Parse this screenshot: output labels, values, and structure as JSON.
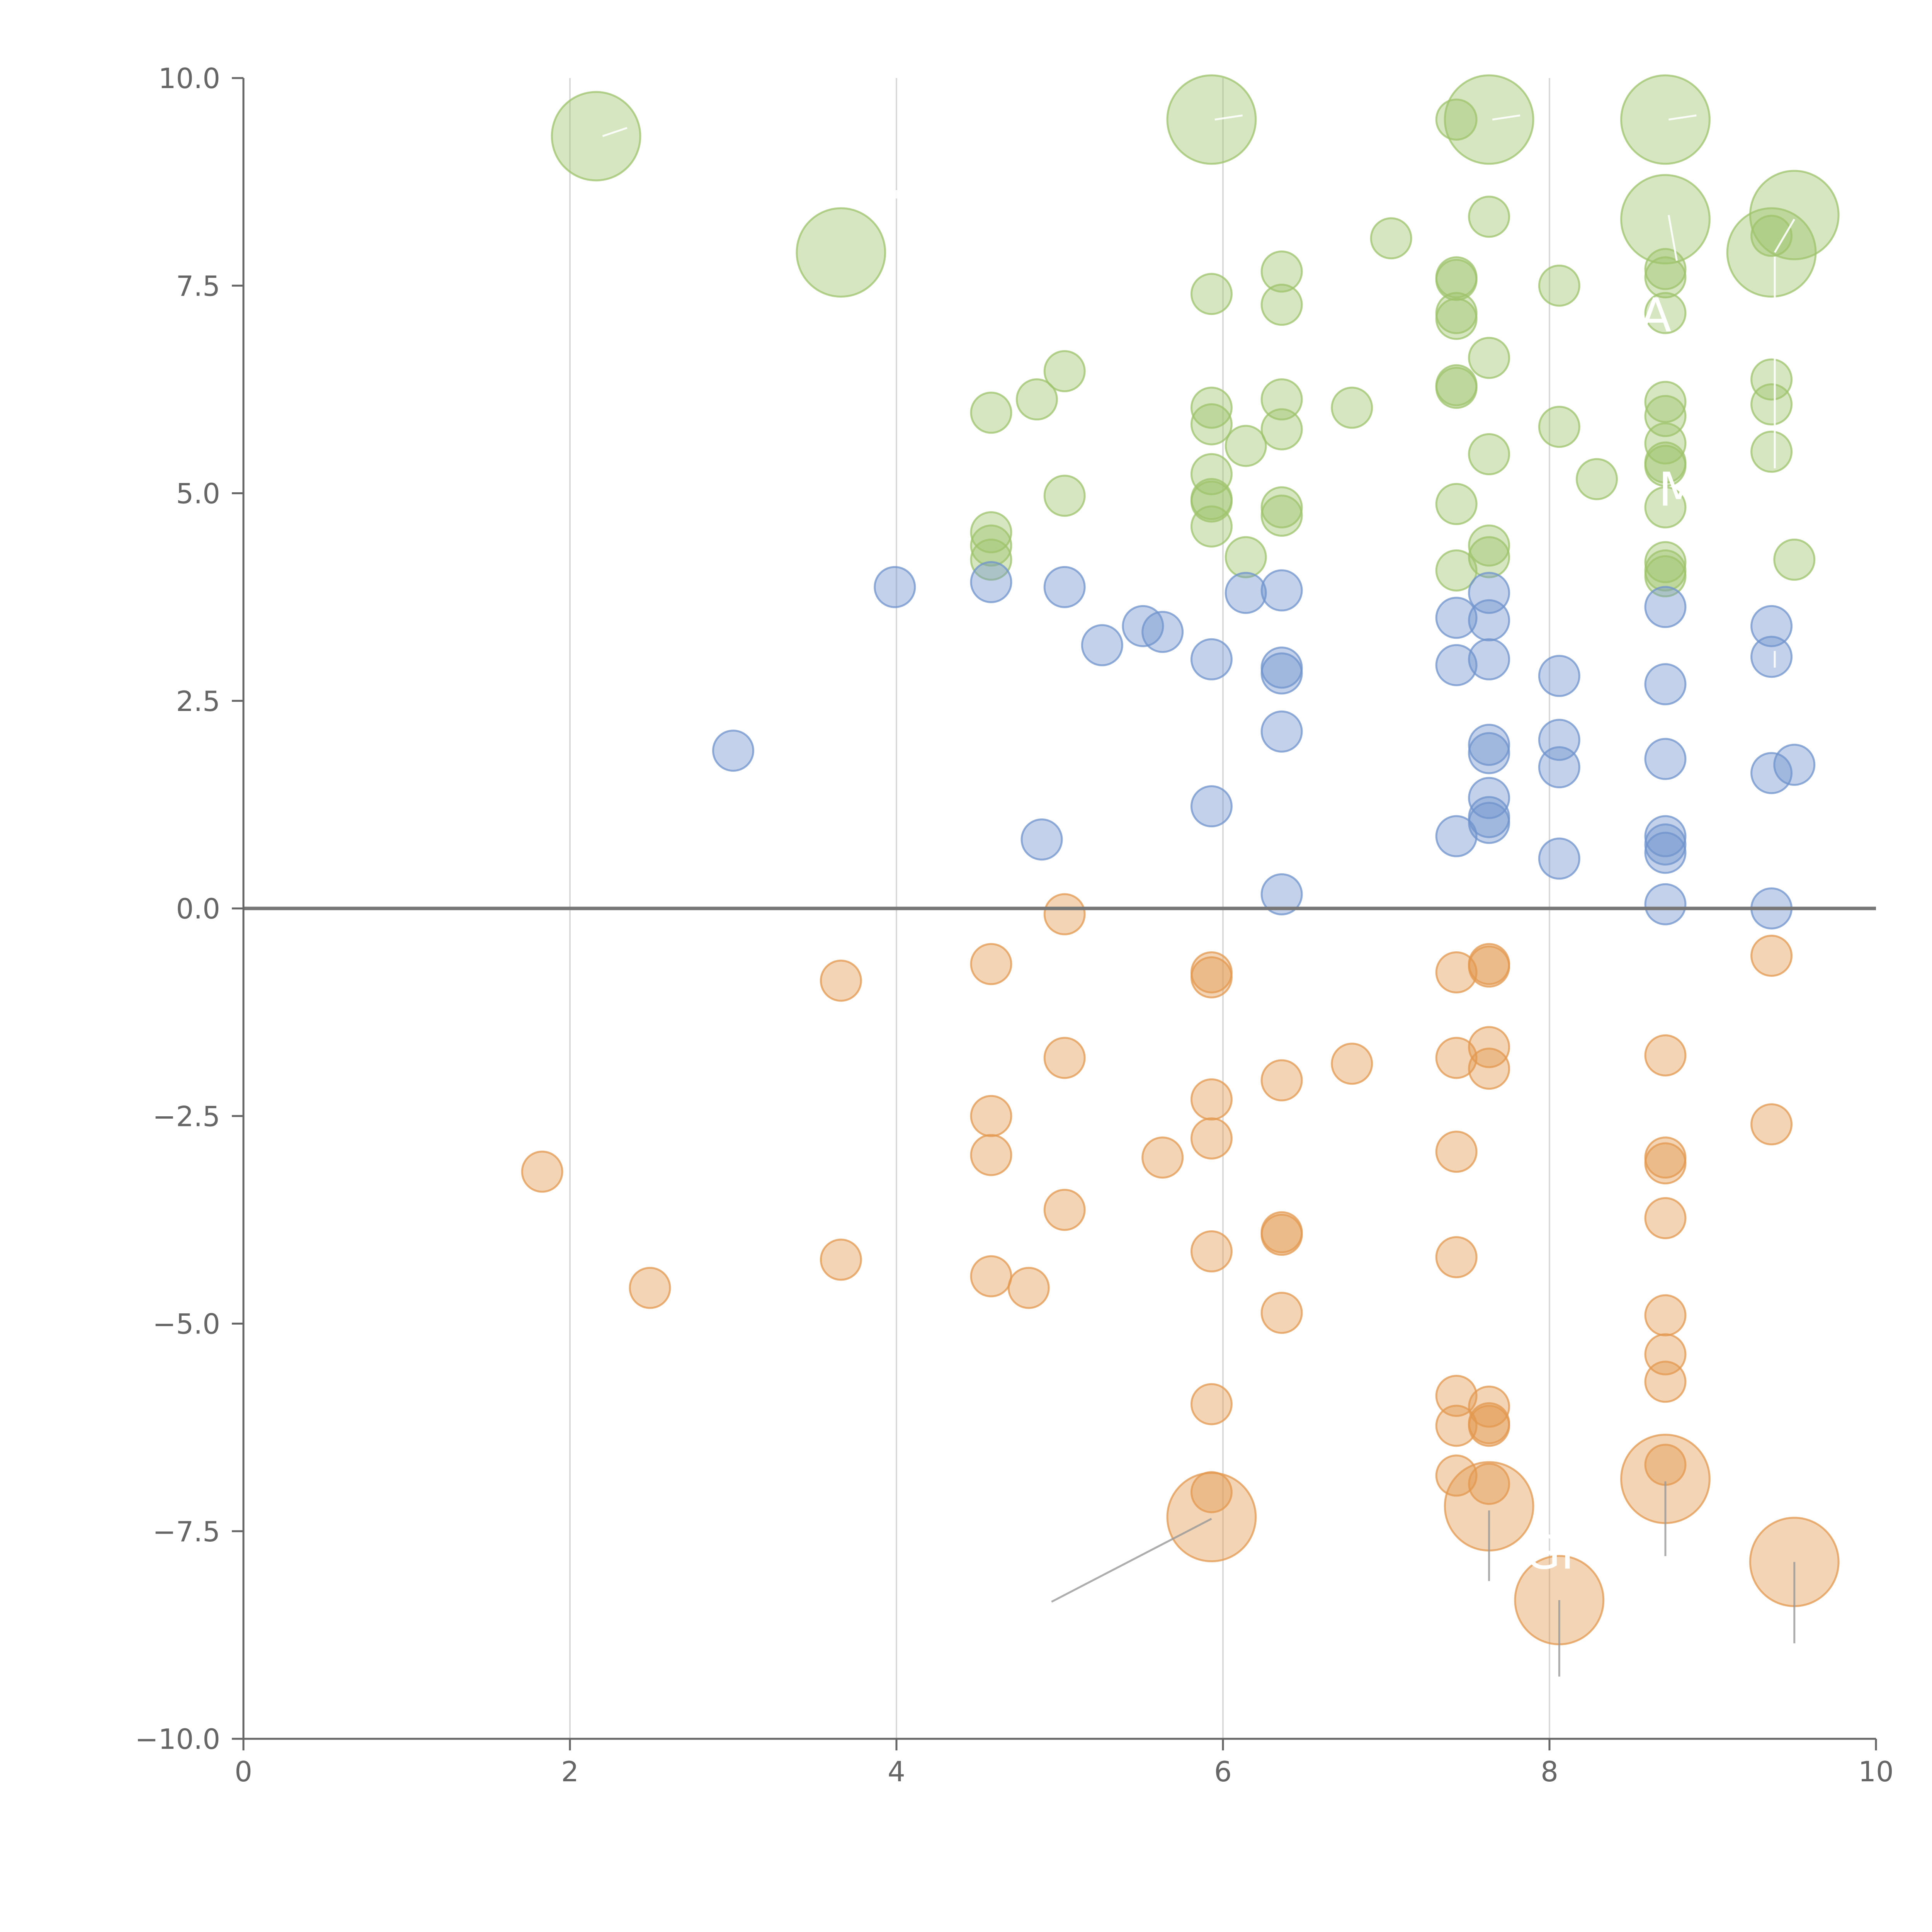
{
  "chart_data": {
    "type": "scatter",
    "title": "",
    "xlabel": "",
    "ylabel": "",
    "xlim": [
      0,
      10
    ],
    "ylim": [
      -10,
      10
    ],
    "xticks": [
      0,
      2,
      4,
      6,
      8,
      10
    ],
    "yticks": [
      -10,
      -7.5,
      -5,
      -2.5,
      0,
      2.5,
      5,
      7.5,
      10
    ],
    "xtick_labels": [
      "0",
      "2",
      "4",
      "6",
      "8",
      "10"
    ],
    "ytick_labels": [
      "−10.0",
      "−7.5",
      "−5.0",
      "−2.5",
      "0.0",
      "2.5",
      "5.0",
      "7.5",
      "10.0"
    ],
    "gridlines_x": [
      2,
      4,
      6,
      8
    ],
    "reference_line_y": 0,
    "colors": {
      "green": "#9dc36b",
      "blue": "#6f93cc",
      "orange": "#e3984f",
      "axis": "#666666"
    },
    "series": [
      {
        "name": "green",
        "color": "#9dc36b",
        "points": [
          {
            "x": 2.16,
            "y": 9.3,
            "s": 2.2
          },
          {
            "x": 3.66,
            "y": 7.9,
            "s": 2.2
          },
          {
            "x": 5.93,
            "y": 9.5,
            "s": 2.2
          },
          {
            "x": 7.63,
            "y": 9.5,
            "s": 2.2
          },
          {
            "x": 8.71,
            "y": 9.5,
            "s": 2.2
          },
          {
            "x": 8.71,
            "y": 8.3,
            "s": 2.2
          },
          {
            "x": 9.36,
            "y": 7.9,
            "s": 2.2
          },
          {
            "x": 9.5,
            "y": 8.35,
            "s": 2.2
          },
          {
            "x": 7.43,
            "y": 9.5,
            "s": 1
          },
          {
            "x": 7.63,
            "y": 8.33,
            "s": 1
          },
          {
            "x": 7.03,
            "y": 8.07,
            "s": 1
          },
          {
            "x": 6.36,
            "y": 7.67,
            "s": 1
          },
          {
            "x": 7.43,
            "y": 7.6,
            "s": 1
          },
          {
            "x": 7.43,
            "y": 7.57,
            "s": 1
          },
          {
            "x": 8.06,
            "y": 7.5,
            "s": 1
          },
          {
            "x": 5.93,
            "y": 7.4,
            "s": 1
          },
          {
            "x": 6.36,
            "y": 7.27,
            "s": 1
          },
          {
            "x": 7.43,
            "y": 7.17,
            "s": 1
          },
          {
            "x": 7.43,
            "y": 7.1,
            "s": 1
          },
          {
            "x": 8.71,
            "y": 7.7,
            "s": 1
          },
          {
            "x": 8.71,
            "y": 7.6,
            "s": 1
          },
          {
            "x": 8.71,
            "y": 7.17,
            "s": 1
          },
          {
            "x": 9.36,
            "y": 8.1,
            "s": 1
          },
          {
            "x": 7.63,
            "y": 6.63,
            "s": 1
          },
          {
            "x": 7.43,
            "y": 6.3,
            "s": 1
          },
          {
            "x": 7.43,
            "y": 6.27,
            "s": 1
          },
          {
            "x": 5.03,
            "y": 6.47,
            "s": 1
          },
          {
            "x": 4.86,
            "y": 6.13,
            "s": 1
          },
          {
            "x": 4.58,
            "y": 5.97,
            "s": 1
          },
          {
            "x": 6.36,
            "y": 6.13,
            "s": 1
          },
          {
            "x": 6.79,
            "y": 6.03,
            "s": 1
          },
          {
            "x": 5.93,
            "y": 6.03,
            "s": 1
          },
          {
            "x": 5.93,
            "y": 5.83,
            "s": 1
          },
          {
            "x": 6.36,
            "y": 5.77,
            "s": 1
          },
          {
            "x": 6.14,
            "y": 5.57,
            "s": 1
          },
          {
            "x": 8.71,
            "y": 6.1,
            "s": 1
          },
          {
            "x": 8.71,
            "y": 5.93,
            "s": 1
          },
          {
            "x": 8.06,
            "y": 5.8,
            "s": 1
          },
          {
            "x": 8.71,
            "y": 5.6,
            "s": 1
          },
          {
            "x": 7.63,
            "y": 5.47,
            "s": 1
          },
          {
            "x": 8.71,
            "y": 5.37,
            "s": 1
          },
          {
            "x": 8.71,
            "y": 5.33,
            "s": 1
          },
          {
            "x": 9.36,
            "y": 6.37,
            "s": 1
          },
          {
            "x": 9.36,
            "y": 6.07,
            "s": 1
          },
          {
            "x": 9.36,
            "y": 5.5,
            "s": 1
          },
          {
            "x": 8.29,
            "y": 5.17,
            "s": 1
          },
          {
            "x": 5.93,
            "y": 5.23,
            "s": 1
          },
          {
            "x": 5.03,
            "y": 4.97,
            "s": 1
          },
          {
            "x": 5.93,
            "y": 4.93,
            "s": 1
          },
          {
            "x": 5.93,
            "y": 4.9,
            "s": 1
          },
          {
            "x": 7.43,
            "y": 4.87,
            "s": 1
          },
          {
            "x": 6.36,
            "y": 4.83,
            "s": 1
          },
          {
            "x": 6.36,
            "y": 4.73,
            "s": 1
          },
          {
            "x": 5.93,
            "y": 4.6,
            "s": 1
          },
          {
            "x": 4.58,
            "y": 4.53,
            "s": 1
          },
          {
            "x": 4.58,
            "y": 4.37,
            "s": 1
          },
          {
            "x": 4.58,
            "y": 4.2,
            "s": 1
          },
          {
            "x": 6.14,
            "y": 4.23,
            "s": 1
          },
          {
            "x": 7.63,
            "y": 4.37,
            "s": 1
          },
          {
            "x": 7.63,
            "y": 4.23,
            "s": 1
          },
          {
            "x": 7.43,
            "y": 4.07,
            "s": 1
          },
          {
            "x": 8.71,
            "y": 4.17,
            "s": 1
          },
          {
            "x": 8.71,
            "y": 4.07,
            "s": 1
          },
          {
            "x": 8.71,
            "y": 4.0,
            "s": 1
          },
          {
            "x": 8.71,
            "y": 4.83,
            "s": 1
          },
          {
            "x": 9.5,
            "y": 4.2,
            "s": 1
          }
        ]
      },
      {
        "name": "blue",
        "color": "#6f93cc",
        "points": [
          {
            "x": 3.99,
            "y": 3.87,
            "s": 1
          },
          {
            "x": 4.58,
            "y": 3.93,
            "s": 1
          },
          {
            "x": 5.03,
            "y": 3.87,
            "s": 1
          },
          {
            "x": 5.51,
            "y": 3.4,
            "s": 1
          },
          {
            "x": 5.63,
            "y": 3.33,
            "s": 1
          },
          {
            "x": 5.26,
            "y": 3.17,
            "s": 1
          },
          {
            "x": 5.93,
            "y": 3.0,
            "s": 1
          },
          {
            "x": 6.14,
            "y": 3.8,
            "s": 1
          },
          {
            "x": 6.36,
            "y": 3.83,
            "s": 1
          },
          {
            "x": 6.36,
            "y": 2.9,
            "s": 1
          },
          {
            "x": 6.36,
            "y": 2.83,
            "s": 1
          },
          {
            "x": 6.36,
            "y": 2.13,
            "s": 1
          },
          {
            "x": 7.43,
            "y": 3.5,
            "s": 1
          },
          {
            "x": 7.43,
            "y": 2.93,
            "s": 1
          },
          {
            "x": 7.63,
            "y": 3.8,
            "s": 1
          },
          {
            "x": 7.63,
            "y": 3.47,
            "s": 1
          },
          {
            "x": 7.63,
            "y": 3.0,
            "s": 1
          },
          {
            "x": 8.06,
            "y": 2.8,
            "s": 1
          },
          {
            "x": 8.71,
            "y": 3.63,
            "s": 1
          },
          {
            "x": 8.71,
            "y": 2.7,
            "s": 1
          },
          {
            "x": 9.36,
            "y": 3.4,
            "s": 1
          },
          {
            "x": 9.36,
            "y": 3.03,
            "s": 1
          },
          {
            "x": 3.0,
            "y": 1.9,
            "s": 1
          },
          {
            "x": 5.93,
            "y": 1.23,
            "s": 1
          },
          {
            "x": 4.89,
            "y": 0.83,
            "s": 1
          },
          {
            "x": 7.63,
            "y": 1.97,
            "s": 1
          },
          {
            "x": 7.63,
            "y": 1.87,
            "s": 1
          },
          {
            "x": 8.06,
            "y": 2.03,
            "s": 1
          },
          {
            "x": 8.06,
            "y": 1.7,
            "s": 1
          },
          {
            "x": 7.63,
            "y": 1.33,
            "s": 1
          },
          {
            "x": 7.63,
            "y": 1.1,
            "s": 1
          },
          {
            "x": 7.63,
            "y": 1.03,
            "s": 1
          },
          {
            "x": 7.43,
            "y": 0.87,
            "s": 1
          },
          {
            "x": 8.06,
            "y": 0.6,
            "s": 1
          },
          {
            "x": 8.71,
            "y": 1.8,
            "s": 1
          },
          {
            "x": 8.71,
            "y": 0.87,
            "s": 1
          },
          {
            "x": 8.71,
            "y": 0.77,
            "s": 1
          },
          {
            "x": 8.71,
            "y": 0.67,
            "s": 1
          },
          {
            "x": 8.71,
            "y": 0.05,
            "s": 1
          },
          {
            "x": 9.36,
            "y": 1.63,
            "s": 1
          },
          {
            "x": 9.5,
            "y": 1.73,
            "s": 1
          },
          {
            "x": 9.36,
            "y": 0.0,
            "s": 1
          },
          {
            "x": 6.36,
            "y": 0.17,
            "s": 1
          }
        ]
      },
      {
        "name": "orange",
        "color": "#e3984f",
        "points": [
          {
            "x": 5.03,
            "y": -0.07,
            "s": 1
          },
          {
            "x": 3.66,
            "y": -0.87,
            "s": 1
          },
          {
            "x": 4.58,
            "y": -0.67,
            "s": 1
          },
          {
            "x": 5.93,
            "y": -0.77,
            "s": 1
          },
          {
            "x": 5.93,
            "y": -0.83,
            "s": 1
          },
          {
            "x": 7.43,
            "y": -0.77,
            "s": 1
          },
          {
            "x": 7.63,
            "y": -0.67,
            "s": 1
          },
          {
            "x": 7.63,
            "y": -0.7,
            "s": 1
          },
          {
            "x": 9.36,
            "y": -0.57,
            "s": 1
          },
          {
            "x": 5.03,
            "y": -1.8,
            "s": 1
          },
          {
            "x": 6.79,
            "y": -1.87,
            "s": 1
          },
          {
            "x": 6.36,
            "y": -2.07,
            "s": 1
          },
          {
            "x": 7.43,
            "y": -1.8,
            "s": 1
          },
          {
            "x": 7.63,
            "y": -1.67,
            "s": 1
          },
          {
            "x": 7.63,
            "y": -1.93,
            "s": 1
          },
          {
            "x": 8.71,
            "y": -1.77,
            "s": 1
          },
          {
            "x": 5.93,
            "y": -2.3,
            "s": 1
          },
          {
            "x": 4.58,
            "y": -2.5,
            "s": 1
          },
          {
            "x": 4.58,
            "y": -2.97,
            "s": 1
          },
          {
            "x": 5.93,
            "y": -2.77,
            "s": 1
          },
          {
            "x": 5.63,
            "y": -3.0,
            "s": 1
          },
          {
            "x": 7.43,
            "y": -2.93,
            "s": 1
          },
          {
            "x": 8.71,
            "y": -3.0,
            "s": 1
          },
          {
            "x": 8.71,
            "y": -3.07,
            "s": 1
          },
          {
            "x": 9.36,
            "y": -2.6,
            "s": 1
          },
          {
            "x": 1.83,
            "y": -3.17,
            "s": 1
          },
          {
            "x": 5.03,
            "y": -3.63,
            "s": 1
          },
          {
            "x": 6.36,
            "y": -3.9,
            "s": 1
          },
          {
            "x": 6.36,
            "y": -3.93,
            "s": 1
          },
          {
            "x": 5.93,
            "y": -4.13,
            "s": 1
          },
          {
            "x": 3.66,
            "y": -4.23,
            "s": 1
          },
          {
            "x": 4.58,
            "y": -4.43,
            "s": 1
          },
          {
            "x": 4.81,
            "y": -4.57,
            "s": 1
          },
          {
            "x": 2.49,
            "y": -4.57,
            "s": 1
          },
          {
            "x": 7.43,
            "y": -4.2,
            "s": 1
          },
          {
            "x": 8.71,
            "y": -3.73,
            "s": 1
          },
          {
            "x": 6.36,
            "y": -4.87,
            "s": 1
          },
          {
            "x": 8.71,
            "y": -4.9,
            "s": 1
          },
          {
            "x": 8.71,
            "y": -5.37,
            "s": 1
          },
          {
            "x": 8.71,
            "y": -5.7,
            "s": 1
          },
          {
            "x": 7.43,
            "y": -5.87,
            "s": 1
          },
          {
            "x": 7.43,
            "y": -6.23,
            "s": 1
          },
          {
            "x": 7.63,
            "y": -6.0,
            "s": 1
          },
          {
            "x": 7.63,
            "y": -6.2,
            "s": 1
          },
          {
            "x": 7.63,
            "y": -6.23,
            "s": 1
          },
          {
            "x": 5.93,
            "y": -5.97,
            "s": 1
          },
          {
            "x": 5.93,
            "y": -7.03,
            "s": 1
          },
          {
            "x": 7.43,
            "y": -6.83,
            "s": 1
          },
          {
            "x": 7.63,
            "y": -6.93,
            "s": 1
          },
          {
            "x": 8.71,
            "y": -6.7,
            "s": 1
          },
          {
            "x": 5.93,
            "y": -7.33,
            "s": 2.2
          },
          {
            "x": 7.63,
            "y": -7.2,
            "s": 2.2
          },
          {
            "x": 8.71,
            "y": -6.87,
            "s": 2.2
          },
          {
            "x": 8.06,
            "y": -8.33,
            "s": 2.2
          },
          {
            "x": 9.5,
            "y": -7.87,
            "s": 2.2
          }
        ]
      }
    ],
    "leaders": [
      {
        "from": [
          5.93,
          -7.35
        ],
        "to": [
          4.95,
          -8.35
        ],
        "tone": "dark"
      },
      {
        "from": [
          7.63,
          -7.25
        ],
        "to": [
          7.63,
          -8.1
        ],
        "tone": "dark"
      },
      {
        "from": [
          8.71,
          -6.9
        ],
        "to": [
          8.71,
          -7.8
        ],
        "tone": "dark"
      },
      {
        "from": [
          8.06,
          -8.33
        ],
        "to": [
          8.06,
          -9.25
        ],
        "tone": "dark"
      },
      {
        "from": [
          9.5,
          -7.87
        ],
        "to": [
          9.5,
          -8.85
        ],
        "tone": "dark"
      },
      {
        "from": [
          2.2,
          9.3
        ],
        "to": [
          2.35,
          9.4
        ],
        "tone": "light"
      },
      {
        "from": [
          5.95,
          9.5
        ],
        "to": [
          6.12,
          9.55
        ],
        "tone": "light"
      },
      {
        "from": [
          7.65,
          9.5
        ],
        "to": [
          7.82,
          9.55
        ],
        "tone": "light"
      },
      {
        "from": [
          8.73,
          9.5
        ],
        "to": [
          8.9,
          9.55
        ],
        "tone": "light"
      },
      {
        "from": [
          9.38,
          7.9
        ],
        "to": [
          9.5,
          8.3
        ],
        "tone": "light"
      },
      {
        "from": [
          9.38,
          7.85
        ],
        "to": [
          9.38,
          5.3
        ],
        "tone": "light"
      },
      {
        "from": [
          9.38,
          3.1
        ],
        "to": [
          9.38,
          2.9
        ],
        "tone": "light"
      },
      {
        "from": [
          8.73,
          8.35
        ],
        "to": [
          8.78,
          7.8
        ],
        "tone": "light"
      },
      {
        "from": [
          4.0,
          8.55
        ],
        "to": [
          4.0,
          8.65
        ],
        "tone": "light"
      }
    ],
    "annotations": [
      {
        "text": "GI",
        "x": 8.0,
        "y": -7.95
      },
      {
        "text": "M",
        "x": 8.79,
        "y": 4.85
      },
      {
        "text": "A",
        "x": 8.65,
        "y": 6.95
      },
      {
        "text": "′",
        "x": 9.22,
        "y": -7.8
      },
      {
        "text": "′",
        "x": 7.9,
        "y": 9.55
      }
    ]
  }
}
